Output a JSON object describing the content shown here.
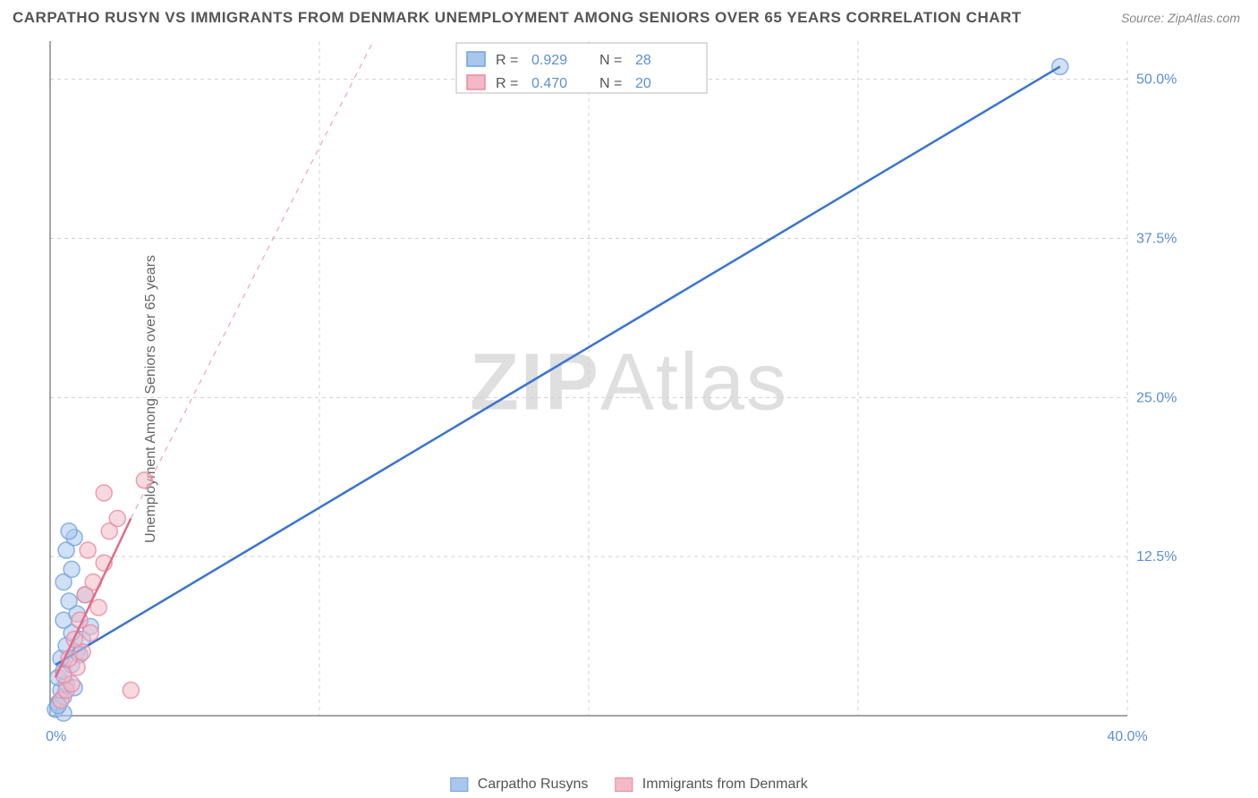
{
  "title": "CARPATHO RUSYN VS IMMIGRANTS FROM DENMARK UNEMPLOYMENT AMONG SENIORS OVER 65 YEARS CORRELATION CHART",
  "source": "Source: ZipAtlas.com",
  "ylabel": "Unemployment Among Seniors over 65 years",
  "watermark_a": "ZIP",
  "watermark_b": "Atlas",
  "chart": {
    "type": "scatter",
    "background_color": "#ffffff",
    "grid_color": "#d0d0d0",
    "axis_color": "#888888",
    "tick_label_color": "#5b8fd6",
    "xlim": [
      0,
      40
    ],
    "ylim": [
      0,
      53
    ],
    "x_ticks": [
      0,
      10,
      20,
      30,
      40
    ],
    "x_tick_labels": [
      "0.0%",
      "",
      "",
      "",
      "40.0%"
    ],
    "y_ticks": [
      12.5,
      25.0,
      37.5,
      50.0
    ],
    "y_tick_labels": [
      "12.5%",
      "25.0%",
      "37.5%",
      "50.0%"
    ],
    "series": [
      {
        "name": "Carpatho Rusyns",
        "color_fill": "#a9c7ec",
        "color_stroke": "#6fa3dd",
        "line_color": "#3b74d1",
        "line_width": 2.5,
        "marker_radius": 9,
        "marker_opacity": 0.55,
        "R": "0.929",
        "N": "28",
        "points": [
          [
            0.2,
            0.5
          ],
          [
            0.3,
            1.0
          ],
          [
            0.5,
            1.5
          ],
          [
            0.4,
            2.0
          ],
          [
            0.6,
            2.5
          ],
          [
            0.3,
            3.0
          ],
          [
            0.5,
            3.5
          ],
          [
            0.8,
            4.0
          ],
          [
            0.4,
            4.5
          ],
          [
            1.0,
            5.0
          ],
          [
            0.6,
            5.5
          ],
          [
            1.2,
            6.0
          ],
          [
            0.8,
            6.5
          ],
          [
            1.5,
            7.0
          ],
          [
            0.5,
            7.5
          ],
          [
            1.0,
            8.0
          ],
          [
            0.7,
            9.0
          ],
          [
            1.3,
            9.5
          ],
          [
            0.5,
            10.5
          ],
          [
            0.8,
            11.5
          ],
          [
            0.6,
            13.0
          ],
          [
            0.9,
            14.0
          ],
          [
            0.7,
            14.5
          ],
          [
            0.5,
            0.2
          ],
          [
            0.3,
            0.8
          ],
          [
            1.1,
            4.8
          ],
          [
            0.9,
            2.2
          ],
          [
            37.5,
            51.0
          ]
        ],
        "trend_line": [
          [
            0.2,
            4.0
          ],
          [
            37.5,
            51.0
          ]
        ],
        "dashed_line": null
      },
      {
        "name": "Immigrants from Denmark",
        "color_fill": "#f4b9c6",
        "color_stroke": "#e98aa1",
        "line_color": "#e36b88",
        "line_width": 2.5,
        "marker_radius": 9,
        "marker_opacity": 0.55,
        "R": "0.470",
        "N": "20",
        "points": [
          [
            0.4,
            1.2
          ],
          [
            0.6,
            2.0
          ],
          [
            0.8,
            2.5
          ],
          [
            0.5,
            3.2
          ],
          [
            1.0,
            3.8
          ],
          [
            0.7,
            4.5
          ],
          [
            1.2,
            5.0
          ],
          [
            0.9,
            6.0
          ],
          [
            1.5,
            6.5
          ],
          [
            1.1,
            7.5
          ],
          [
            1.8,
            8.5
          ],
          [
            1.3,
            9.5
          ],
          [
            1.6,
            10.5
          ],
          [
            2.0,
            12.0
          ],
          [
            1.4,
            13.0
          ],
          [
            2.2,
            14.5
          ],
          [
            2.5,
            15.5
          ],
          [
            2.0,
            17.5
          ],
          [
            3.5,
            18.5
          ],
          [
            3.0,
            2.0
          ]
        ],
        "trend_line": [
          [
            0.2,
            3.0
          ],
          [
            3.0,
            15.5
          ]
        ],
        "dashed_line": [
          [
            3.0,
            15.5
          ],
          [
            12.0,
            53.0
          ]
        ]
      }
    ]
  },
  "top_legend": {
    "rows": [
      {
        "swatch_fill": "#a9c7ec",
        "swatch_stroke": "#6fa3dd",
        "R": "0.929",
        "N": "28"
      },
      {
        "swatch_fill": "#f4b9c6",
        "swatch_stroke": "#e98aa1",
        "R": "0.470",
        "N": "20"
      }
    ]
  },
  "bottom_legend": {
    "items": [
      {
        "swatch_fill": "#a9c7ec",
        "swatch_stroke": "#6fa3dd",
        "label": "Carpatho Rusyns"
      },
      {
        "swatch_fill": "#f4b9c6",
        "swatch_stroke": "#e98aa1",
        "label": "Immigrants from Denmark"
      }
    ]
  }
}
